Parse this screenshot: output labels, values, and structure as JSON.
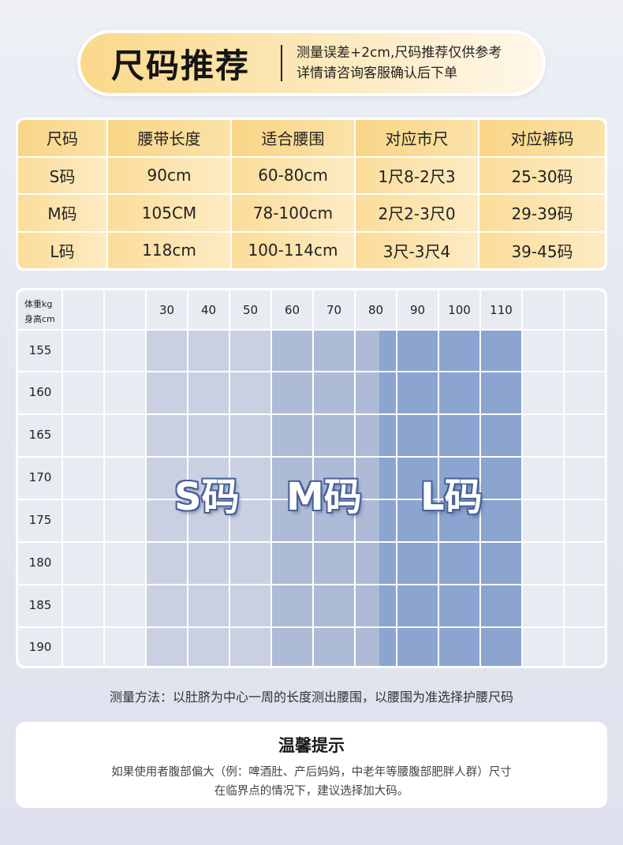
{
  "header": {
    "title": "尺码推荐",
    "note_line1": "测量误差+2cm,尺码推荐仅供参考",
    "note_line2": "详情请咨询客服确认后下单"
  },
  "size_table": {
    "headers": [
      "尺码",
      "腰带长度",
      "适合腰围",
      "对应市尺",
      "对应裤码"
    ],
    "rows": [
      [
        "S码",
        "90cm",
        "60-80cm",
        "1尺8-2尺3",
        "25-30码"
      ],
      [
        "M码",
        "105CM",
        "78-100cm",
        "2尺2-3尺0",
        "29-39码"
      ],
      [
        "L码",
        "118cm",
        "100-114cm",
        "3尺-3尺4",
        "39-45码"
      ]
    ]
  },
  "weight_height_chart": {
    "corner_weight": "体重kg",
    "corner_height": "身高cm",
    "weights": [
      "30",
      "40",
      "50",
      "60",
      "70",
      "80",
      "90",
      "100",
      "110"
    ],
    "heights": [
      "155",
      "160",
      "165",
      "170",
      "175",
      "180",
      "185",
      "190"
    ],
    "bands": [
      {
        "label": "S码",
        "weight_range": [
          30,
          50
        ],
        "color": "#c9d0e2"
      },
      {
        "label": "M码",
        "weight_range": [
          60,
          80
        ],
        "color": "#aebbd6"
      },
      {
        "label": "L码",
        "weight_range": [
          80,
          110
        ],
        "color": "#8ba4d0"
      }
    ]
  },
  "measure_note": "测量方法：以肚脐为中心一周的长度测出腰围，以腰围为准选择护腰尺码",
  "tip": {
    "title": "温馨提示",
    "line1": "如果使用者腹部偏大（例：啤酒肚、产后妈妈，中老年等腰腹部肥胖人群）尺寸",
    "line2": "在临界点的情况下，建议选择加大码。"
  }
}
